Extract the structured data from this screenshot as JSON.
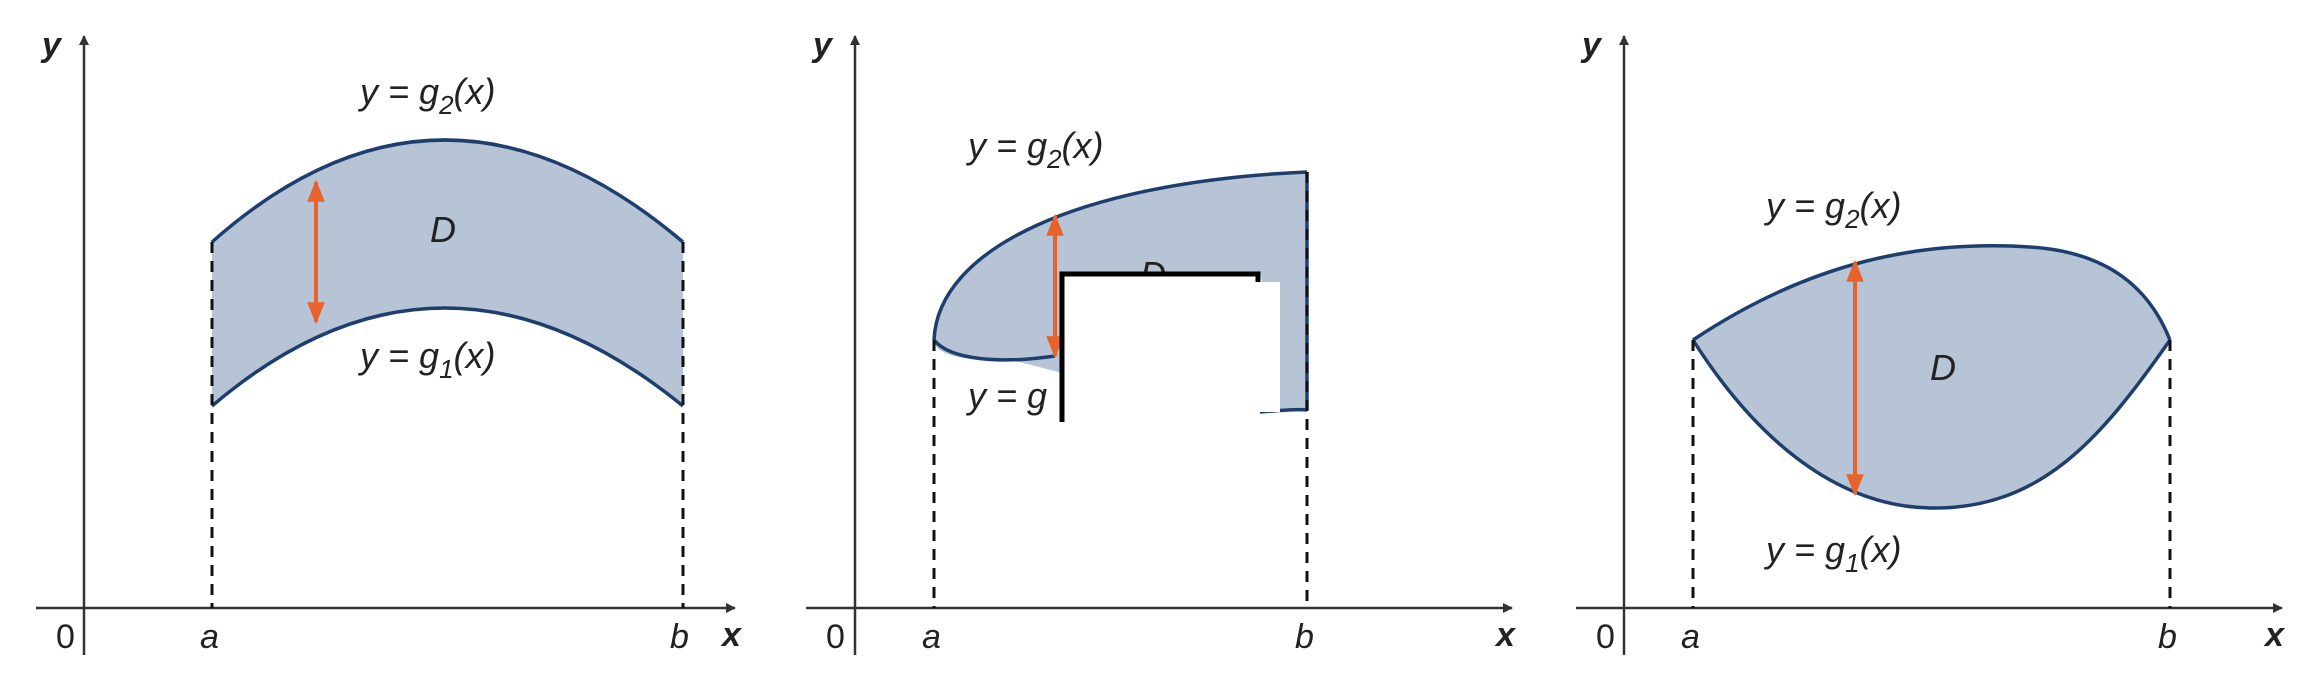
{
  "colors": {
    "region_fill": "#b7c4d6",
    "boundary": "#1e3f6e",
    "arrow": "#e8622c",
    "axis": "#333333",
    "occluder_border": "#000000",
    "occluder_fill": "#ffffff"
  },
  "panels": [
    {
      "y_axis": "y",
      "x_axis": "x",
      "origin": "0",
      "a": "a",
      "b": "b",
      "region": "D",
      "upper": {
        "prefix": "y = g",
        "sub": "2",
        "suffix": "(x)"
      },
      "lower": {
        "prefix": "y = g",
        "sub": "1",
        "suffix": "(x)"
      }
    },
    {
      "y_axis": "y",
      "x_axis": "x",
      "origin": "0",
      "a": "a",
      "b": "b",
      "region": "D",
      "upper": {
        "prefix": "y = g",
        "sub": "2",
        "suffix": "(x)"
      },
      "lower": {
        "prefix": "y = g",
        "sub": "",
        "suffix": ""
      }
    },
    {
      "y_axis": "y",
      "x_axis": "x",
      "origin": "0",
      "a": "a",
      "b": "b",
      "region": "D",
      "upper": {
        "prefix": "y = g",
        "sub": "2",
        "suffix": "(x)"
      },
      "lower": {
        "prefix": "y = g",
        "sub": "1",
        "suffix": "(x)"
      }
    }
  ]
}
